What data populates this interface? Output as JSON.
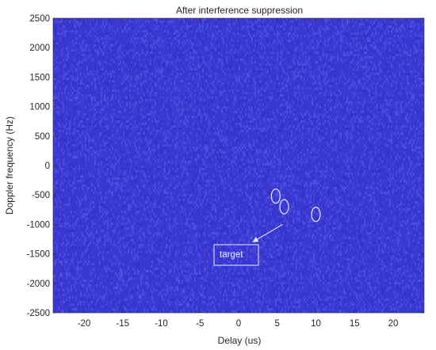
{
  "chart_data": {
    "type": "heatmap",
    "title": "After interference suppression",
    "xlabel": "Delay (us)",
    "ylabel": "Doppler frequency (Hz)",
    "xlim": [
      -24,
      24
    ],
    "ylim": [
      -2500,
      2500
    ],
    "xticks": [
      -20,
      -15,
      -10,
      -5,
      0,
      5,
      10,
      15,
      20
    ],
    "yticks": [
      -2500,
      -2000,
      -1500,
      -1000,
      -500,
      0,
      500,
      1000,
      1500,
      2000,
      2500
    ],
    "grid": false,
    "legend": "none",
    "colors": {
      "background": "#3a3ad2",
      "noise_low": "#2e2ec8",
      "noise_high": "#5a5ae8",
      "annotation": "#e8ecff"
    },
    "targets": [
      {
        "x": 4.8,
        "y": -520
      },
      {
        "x": 5.9,
        "y": -700
      },
      {
        "x": 10.0,
        "y": -830
      }
    ],
    "annotation": {
      "text": "target",
      "arrow_from": {
        "x": 5.7,
        "y": -1000
      },
      "arrow_to": {
        "x": 1.8,
        "y": -1300
      }
    }
  }
}
